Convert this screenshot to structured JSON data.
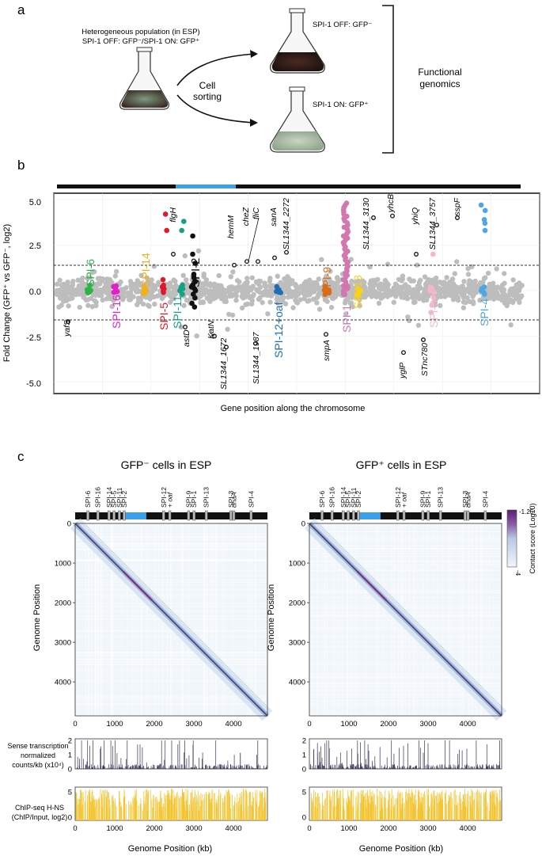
{
  "panel_a": {
    "label": "a",
    "population_line1": "Heterogeneous population (in ESP)",
    "population_line2": "SPI-1 OFF: GFP⁻/SPI-1 ON: GFP⁺",
    "sorting_line1": "Cell",
    "sorting_line2": "sorting",
    "off_label": "SPI-1 OFF: GFP⁻",
    "on_label": "SPI-1 ON: GFP⁺",
    "functional_line1": "Functional",
    "functional_line2": "genomics"
  },
  "panel_b": {
    "label": "b",
    "ylabel": "Fold Change (GFP⁺ vs  GFP⁻, log2)",
    "xlabel": "Gene position along the chromosome",
    "yticks": [
      "5.0",
      "2.5",
      "0.0",
      "-2.5",
      "-5.0"
    ],
    "spi_labels": [
      "SPI-6",
      "SPI-16",
      "SPI-14",
      "SPI-5",
      "SPI-11",
      "SPI-2",
      "SPI-12+oaf",
      "SPI-9",
      "SPI-1",
      "SPI-13",
      "SPI-3",
      "SPI-4"
    ],
    "gene_labels": [
      "yafS",
      "astD",
      "flgH",
      "KatN",
      "SL1344_1672",
      "hemM",
      "cheZ",
      "fliC",
      "SL1344_1987",
      "sanA",
      "SL1344_2272",
      "smpA",
      "SL1344_3130",
      "yhcB",
      "yglP",
      "STnc780",
      "yhiQ",
      "SL1344_3757",
      "sspF"
    ]
  },
  "panel_c": {
    "label": "c",
    "left_title": "GFP⁻ cells in ESP",
    "right_title": "GFP⁺ cells in ESP",
    "spi_tick_labels": [
      "SPI-6",
      "SPI-16",
      "SPI-14",
      "SPI-5",
      "SPI-11",
      "SPI-2",
      "SPI-12",
      "+ oaf",
      "SPI-9",
      "SPI-1",
      "SPI-13",
      "SPI-3",
      "dnaA",
      "SPI-4"
    ],
    "ylabel": "Genome Position",
    "xlabel": "Genome Position (kb)",
    "axis_ticks": [
      "0",
      "1000",
      "2000",
      "3000",
      "4000"
    ],
    "colorbar_title": "Contact score (Log10)",
    "colorbar_max": "-1.25",
    "colorbar_min": "-4",
    "sense_label_1": "Sense transcription",
    "sense_label_2": "normalized",
    "sense_label_3": "counts/kb (x10⁴)",
    "sense_ticks": [
      "2",
      "1",
      "0"
    ],
    "chip_label_1": "ChIP-seq H-NS",
    "chip_label_2": "(ChIP/Input, log2)",
    "chip_ticks": [
      "5",
      "0"
    ]
  },
  "colors": {
    "gray": "#bdbdbd",
    "spi6": "#2bb34a",
    "spi16": "#e520c8",
    "spi14": "#f2b01d",
    "spi5": "#e0182a",
    "spi11": "#16a085",
    "spi2": "#111111",
    "spi12": "#1f6fb5",
    "spi9": "#d96c1a",
    "spi1": "#d277b0",
    "spi13": "#f7d417",
    "spi3": "#f4b7c8",
    "spi4": "#4da6e6",
    "chromosome_highlight": "#3aa0ea",
    "chip": "#f4c430",
    "sense": "#3b3157"
  }
}
